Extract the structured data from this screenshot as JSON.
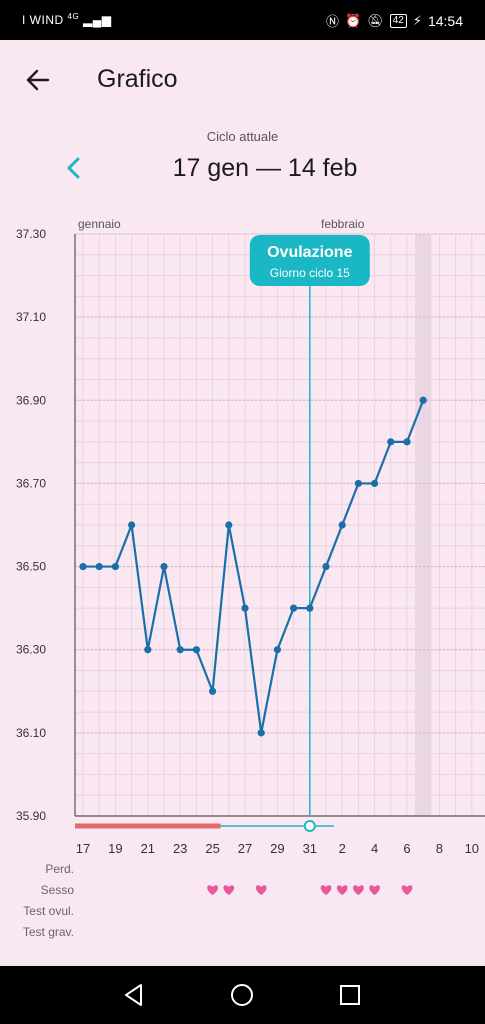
{
  "status_bar": {
    "carrier": "I WIND",
    "network": "4G",
    "battery": "42",
    "time": "14:54"
  },
  "header": {
    "back_icon": "arrow-left-icon",
    "title": "Grafico"
  },
  "cycle": {
    "caption": "Ciclo attuale",
    "range": "17 gen — 14 feb",
    "prev_icon": "chevron-left-icon"
  },
  "chart_data": {
    "type": "line",
    "month_labels": [
      {
        "label": "gennaio",
        "day": 17
      },
      {
        "label": "febbraio",
        "day": 32
      }
    ],
    "y_ticks": [
      "37.30",
      "37.10",
      "36.90",
      "36.70",
      "36.50",
      "36.30",
      "36.10",
      "35.90"
    ],
    "ylim": [
      35.9,
      37.3
    ],
    "x_tick_labels": [
      "17",
      "19",
      "21",
      "23",
      "25",
      "27",
      "29",
      "31",
      "2",
      "4",
      "6",
      "8",
      "10"
    ],
    "x_tick_days": [
      17,
      19,
      21,
      23,
      25,
      27,
      29,
      31,
      33,
      35,
      37,
      39,
      41
    ],
    "xlim": [
      17,
      41
    ],
    "series": [
      {
        "days": [
          17,
          18,
          19,
          20,
          21,
          22,
          23,
          24,
          25,
          26,
          27,
          28,
          29,
          30,
          31,
          32,
          33,
          34,
          35,
          36,
          37,
          38
        ],
        "values": [
          36.5,
          36.5,
          36.5,
          36.6,
          36.3,
          36.5,
          36.3,
          36.3,
          36.2,
          36.6,
          36.4,
          36.1,
          36.3,
          36.4,
          36.4,
          36.5,
          36.6,
          36.7,
          36.7,
          36.8,
          36.8,
          36.9
        ]
      }
    ],
    "ovulation": {
      "day": 31,
      "title": "Ovulazione",
      "subtitle": "Giorno ciclo 15"
    },
    "today_day": 38,
    "period_days": [
      17,
      25
    ],
    "fertile_window": [
      26,
      32
    ],
    "sex_days": [
      25,
      26,
      28,
      32,
      33,
      34,
      35,
      37
    ],
    "colors": {
      "line": "#1b6fa8",
      "ovulation": "#1ab8c4",
      "period": "#e06a6a",
      "heart": "#e8589a",
      "today_band": "#e9d8e4"
    }
  },
  "rows": {
    "period": "Perd.",
    "sex": "Sesso",
    "ovulation_test": "Test ovul.",
    "pregnancy_test": "Test grav."
  },
  "nav": {
    "back_icon": "triangle-back-icon",
    "home_icon": "circle-home-icon",
    "recents_icon": "square-recents-icon"
  }
}
